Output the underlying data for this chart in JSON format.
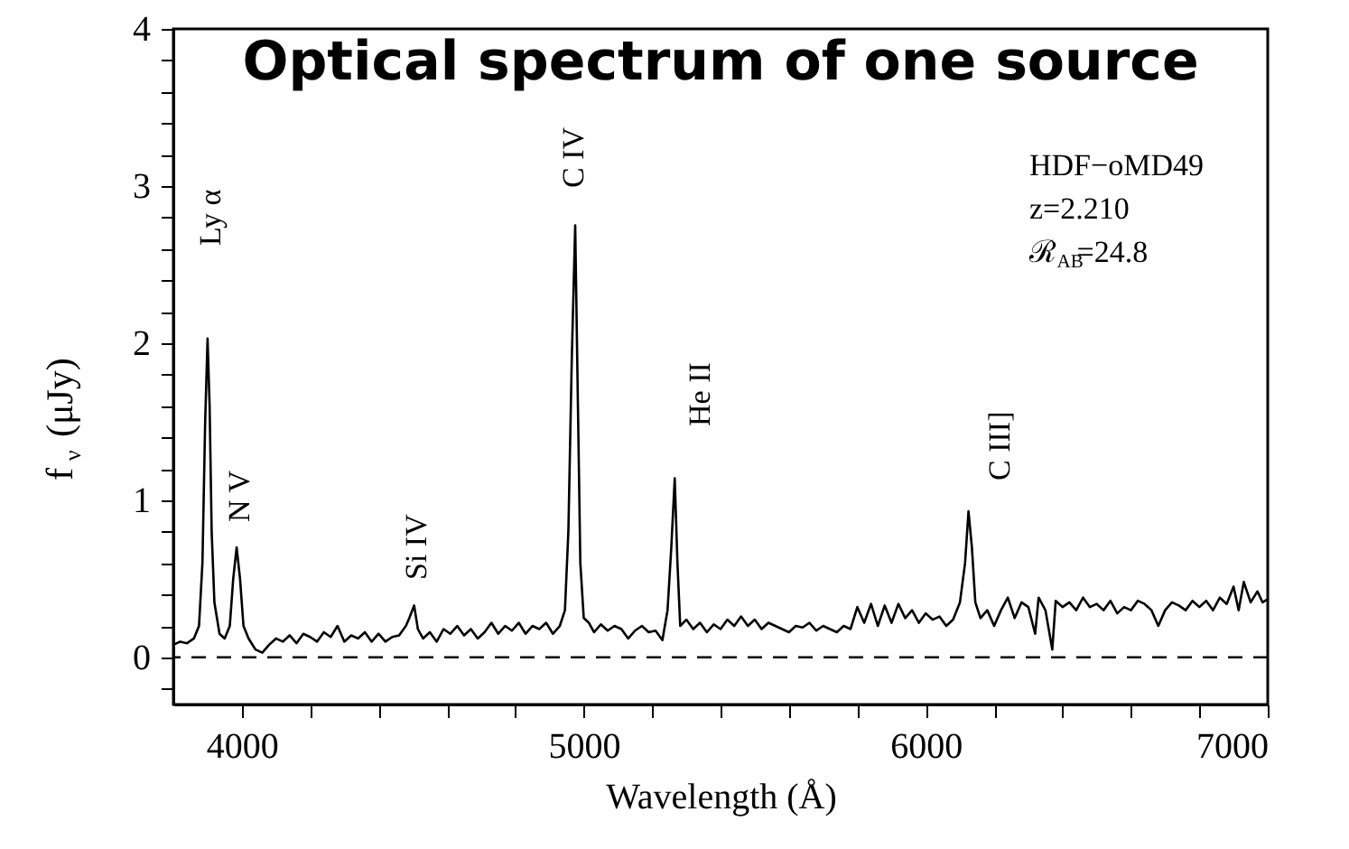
{
  "chart_data": {
    "type": "line",
    "title": "Optical spectrum of one source",
    "xlabel": "Wavelength (Å)",
    "ylabel": "f$_{ν}$ (μJy)",
    "xlim": [
      3800,
      7000
    ],
    "ylim": [
      -0.3,
      4
    ],
    "xticks": [
      4000,
      {
        "value": 4200,
        "label": null
      },
      {
        "value": 4400,
        "label": null
      },
      {
        "value": 4600,
        "label": null
      },
      {
        "value": 4800,
        "label": null
      },
      5000,
      {
        "value": 5200,
        "label": null
      },
      {
        "value": 5400,
        "label": null
      },
      {
        "value": 5600,
        "label": null
      },
      {
        "value": 5800,
        "label": null
      },
      6000,
      {
        "value": 6200,
        "label": null
      },
      {
        "value": 6400,
        "label": null
      },
      {
        "value": 6600,
        "label": null
      },
      {
        "value": 6800,
        "label": null
      },
      7000
    ],
    "yticks": [
      {
        "value": -0.2,
        "label": null
      },
      0,
      {
        "value": 0.2,
        "label": null
      },
      {
        "value": 0.4,
        "label": null
      },
      {
        "value": 0.6,
        "label": null
      },
      {
        "value": 0.8,
        "label": null
      },
      1,
      {
        "value": 1.2,
        "label": null
      },
      {
        "value": 1.4,
        "label": null
      },
      {
        "value": 1.6,
        "label": null
      },
      {
        "value": 1.8,
        "label": null
      },
      2,
      {
        "value": 2.2,
        "label": null
      },
      {
        "value": 2.4,
        "label": null
      },
      {
        "value": 2.6,
        "label": null
      },
      {
        "value": 2.8,
        "label": null
      },
      3,
      {
        "value": 3.2,
        "label": null
      },
      {
        "value": 3.4,
        "label": null
      },
      {
        "value": 3.6,
        "label": null
      },
      {
        "value": 3.8,
        "label": null
      },
      4
    ],
    "grid": false,
    "legend": false,
    "line_style": "solid",
    "series": [
      {
        "color": "#000000",
        "x": [
          3800,
          3820,
          3840,
          3860,
          3875,
          3885,
          3893,
          3900,
          3906,
          3912,
          3920,
          3935,
          3950,
          3965,
          3975,
          3985,
          3995,
          4005,
          4020,
          4040,
          4060,
          4080,
          4100,
          4120,
          4140,
          4160,
          4180,
          4200,
          4220,
          4240,
          4260,
          4280,
          4300,
          4320,
          4340,
          4360,
          4380,
          4400,
          4420,
          4440,
          4460,
          4480,
          4490,
          4504,
          4515,
          4530,
          4550,
          4570,
          4590,
          4610,
          4630,
          4650,
          4670,
          4690,
          4710,
          4730,
          4750,
          4770,
          4790,
          4810,
          4830,
          4850,
          4870,
          4890,
          4910,
          4930,
          4945,
          4955,
          4965,
          4975,
          4983,
          4990,
          5000,
          5015,
          5030,
          5050,
          5070,
          5090,
          5110,
          5130,
          5150,
          5170,
          5190,
          5210,
          5230,
          5245,
          5256,
          5266,
          5274,
          5282,
          5300,
          5320,
          5340,
          5360,
          5380,
          5400,
          5420,
          5440,
          5460,
          5480,
          5500,
          5520,
          5540,
          5560,
          5580,
          5600,
          5620,
          5640,
          5660,
          5680,
          5700,
          5720,
          5740,
          5760,
          5780,
          5800,
          5820,
          5840,
          5860,
          5880,
          5900,
          5920,
          5940,
          5960,
          5980,
          6000,
          6020,
          6040,
          6060,
          6080,
          6100,
          6115,
          6125,
          6135,
          6145,
          6160,
          6180,
          6200,
          6220,
          6240,
          6260,
          6280,
          6300,
          6320,
          6330,
          6350,
          6370,
          6380,
          6400,
          6420,
          6440,
          6460,
          6480,
          6500,
          6520,
          6540,
          6560,
          6580,
          6600,
          6620,
          6640,
          6660,
          6680,
          6700,
          6720,
          6740,
          6760,
          6780,
          6800,
          6820,
          6840,
          6860,
          6880,
          6900,
          6915,
          6930,
          6950,
          6970,
          6985,
          7000
        ],
        "values": [
          0.08,
          0.1,
          0.09,
          0.12,
          0.2,
          0.6,
          1.5,
          2.03,
          1.6,
          0.8,
          0.35,
          0.15,
          0.12,
          0.2,
          0.5,
          0.7,
          0.5,
          0.2,
          0.12,
          0.05,
          0.03,
          0.08,
          0.12,
          0.1,
          0.14,
          0.09,
          0.15,
          0.13,
          0.1,
          0.16,
          0.13,
          0.2,
          0.1,
          0.14,
          0.12,
          0.16,
          0.1,
          0.15,
          0.1,
          0.13,
          0.14,
          0.2,
          0.25,
          0.33,
          0.18,
          0.12,
          0.16,
          0.1,
          0.18,
          0.15,
          0.2,
          0.14,
          0.18,
          0.12,
          0.16,
          0.22,
          0.15,
          0.2,
          0.17,
          0.22,
          0.15,
          0.2,
          0.18,
          0.22,
          0.15,
          0.2,
          0.3,
          0.8,
          1.9,
          2.75,
          1.6,
          0.6,
          0.25,
          0.22,
          0.16,
          0.21,
          0.17,
          0.2,
          0.18,
          0.12,
          0.17,
          0.2,
          0.16,
          0.17,
          0.11,
          0.3,
          0.7,
          1.14,
          0.6,
          0.2,
          0.24,
          0.18,
          0.22,
          0.16,
          0.21,
          0.18,
          0.24,
          0.2,
          0.26,
          0.2,
          0.24,
          0.18,
          0.22,
          0.2,
          0.18,
          0.16,
          0.2,
          0.19,
          0.22,
          0.17,
          0.2,
          0.18,
          0.16,
          0.2,
          0.18,
          0.32,
          0.22,
          0.34,
          0.2,
          0.33,
          0.22,
          0.34,
          0.25,
          0.3,
          0.22,
          0.28,
          0.24,
          0.26,
          0.2,
          0.24,
          0.35,
          0.6,
          0.93,
          0.7,
          0.35,
          0.25,
          0.3,
          0.2,
          0.3,
          0.38,
          0.25,
          0.35,
          0.32,
          0.15,
          0.38,
          0.3,
          0.05,
          0.36,
          0.32,
          0.35,
          0.3,
          0.38,
          0.32,
          0.34,
          0.3,
          0.36,
          0.28,
          0.32,
          0.3,
          0.36,
          0.34,
          0.3,
          0.2,
          0.3,
          0.35,
          0.33,
          0.3,
          0.36,
          0.32,
          0.36,
          0.3,
          0.38,
          0.34,
          0.45,
          0.3,
          0.48,
          0.35,
          0.42,
          0.35,
          0.37
        ]
      }
    ],
    "ref_lines": [
      {
        "axis": "y",
        "value": 0,
        "line_style": "dashed",
        "color": "#000000"
      }
    ],
    "annotations": [
      "Ly α",
      "N V",
      "Si IV",
      "C IV",
      "He II",
      "C III]",
      "HDF−oMD49",
      "z=2.210",
      "ℛ$_{AB}$=24.8"
    ]
  }
}
